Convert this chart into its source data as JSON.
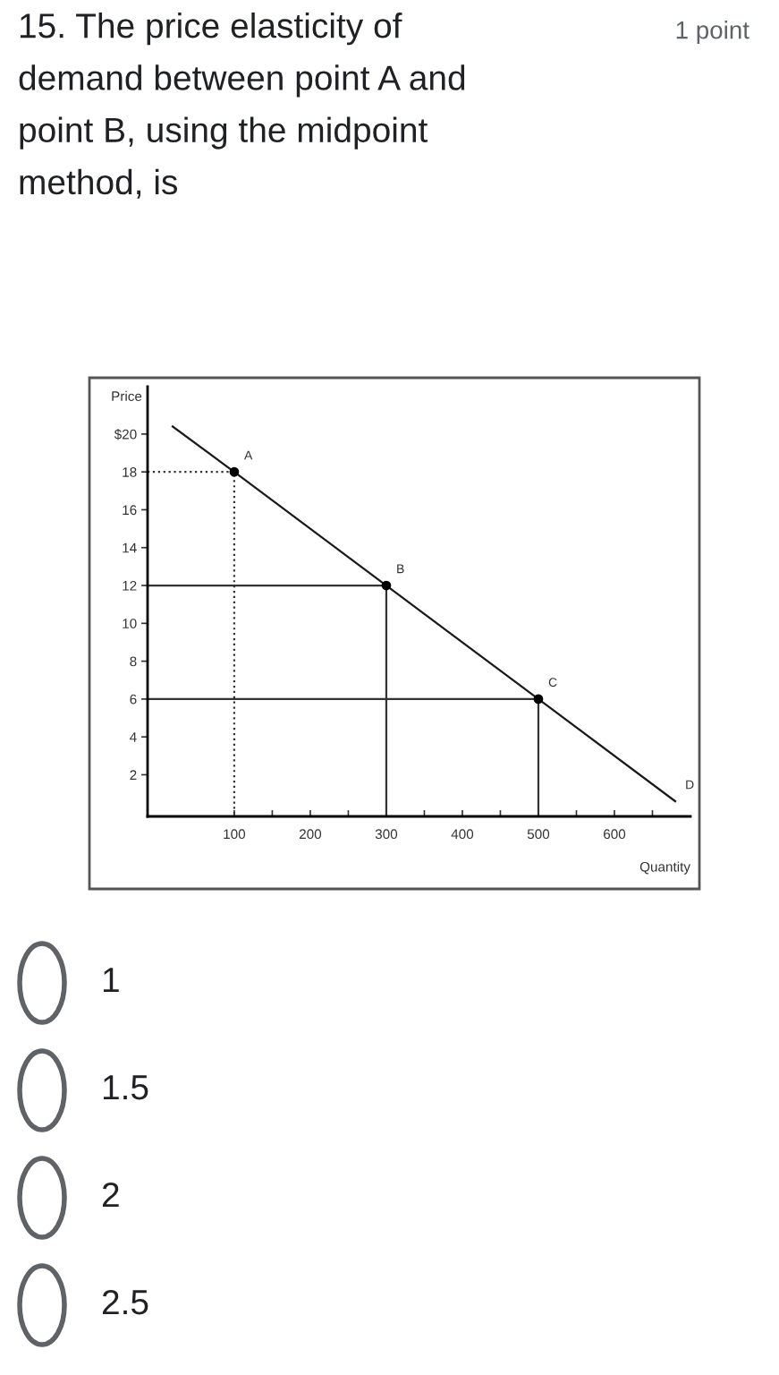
{
  "chart_data": {
    "type": "line",
    "title": "15. The price elasticity of\ndemand between point A and\npoint B, using the midpoint\nmethod, is",
    "xlabel": "Quantity",
    "ylabel": "Price",
    "series": [
      {
        "color": "#1a1a1a",
        "line_style": "solid",
        "x": [
          19,
          100,
          300,
          500,
          680
        ],
        "values": [
          20.4,
          18,
          12,
          6,
          0.6
        ]
      },
      {
        "type": "scatter",
        "color": "#000000",
        "marker": "circle",
        "x": [
          100,
          300,
          500
        ],
        "values": [
          18,
          12,
          6
        ]
      },
      {
        "type": "line",
        "color": "#333333",
        "line_style": "dotted",
        "x": [
          -14,
          100,
          100
        ],
        "values": [
          18,
          18,
          -0.2
        ]
      },
      {
        "type": "line",
        "color": "#333333",
        "line_style": "solid",
        "x": [
          -14,
          300,
          300
        ],
        "values": [
          12,
          12,
          -0.2
        ]
      },
      {
        "type": "line",
        "color": "#333333",
        "line_style": "solid",
        "x": [
          -14,
          500,
          500
        ],
        "values": [
          6,
          6,
          -0.2
        ]
      }
    ],
    "xlim": [
      -14,
      700
    ],
    "ylim": [
      -0.2,
      22.5
    ],
    "xticks": [
      100,
      {
        "value": 150,
        "label": null
      },
      200,
      {
        "value": 250,
        "label": null
      },
      300,
      {
        "value": 350,
        "label": null
      },
      400,
      {
        "value": 450,
        "label": null
      },
      500,
      {
        "value": 550,
        "label": null
      },
      600,
      {
        "value": 650,
        "label": null
      }
    ],
    "yticks": [
      2,
      4,
      6,
      8,
      10,
      12,
      14,
      16,
      18,
      {
        "value": 20,
        "label": "$20"
      }
    ],
    "grid": false,
    "legend": false,
    "annotations": [
      {
        "text": "A",
        "x": 100,
        "y": 18
      },
      {
        "text": "B",
        "x": 300,
        "y": 12
      },
      {
        "text": "C",
        "x": 500,
        "y": 6
      },
      {
        "text": "D",
        "x": 680,
        "y": 0.6
      },
      "1 point",
      "1",
      "1.5",
      "2",
      "2.5"
    ]
  }
}
